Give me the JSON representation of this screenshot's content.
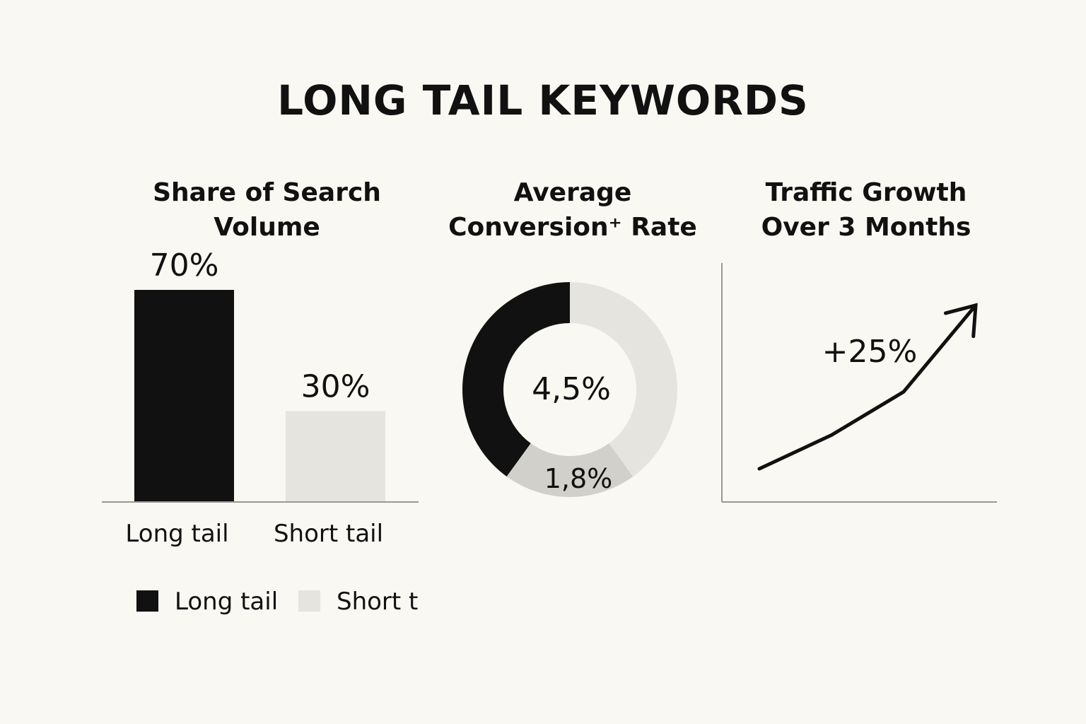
{
  "title": "LONG TAIL KEYWORDS",
  "chart_data": [
    {
      "type": "bar",
      "title": "Share of Search Volume",
      "categories": [
        "Long tail",
        "Short tail"
      ],
      "values": [
        70,
        30
      ],
      "value_labels": [
        "70%",
        "30%"
      ],
      "colors": [
        "#111111",
        "#e6e4df"
      ],
      "ylim": [
        0,
        80
      ],
      "grid": false,
      "legend": {
        "placement": "bottom-left",
        "entries": [
          {
            "label": "Long tail",
            "color": "#111111"
          },
          {
            "label": "Short t",
            "color": "#e6e4df"
          }
        ]
      }
    },
    {
      "type": "pie",
      "title": "Average Conversion⁺ Rate",
      "center_label": "4,5%",
      "slices": [
        {
          "value": 40,
          "color": "#111111",
          "label": ""
        },
        {
          "value": 40,
          "color": "#e6e4df",
          "label": ""
        },
        {
          "value": 20,
          "color": "#d2d0cb",
          "label": "1,8%"
        }
      ]
    },
    {
      "type": "line",
      "title": "Traffic Growth Over 3 Months",
      "x": [
        0,
        1,
        2,
        3
      ],
      "y": [
        0,
        0.7,
        1.6,
        3.4
      ],
      "annotation": "+25%",
      "arrow_end": true,
      "color": "#111111",
      "grid": false
    }
  ]
}
